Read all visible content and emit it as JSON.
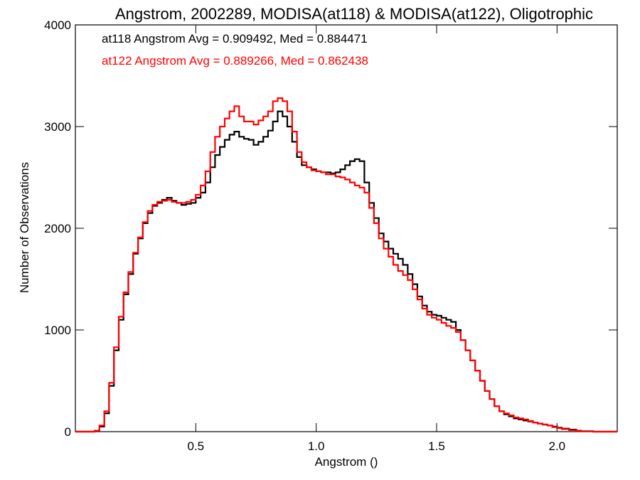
{
  "chart_data": {
    "type": "line",
    "title": "Angstrom, 2002289, MODISA(at118) & MODISA(at122), Oligotrophic",
    "xlabel": "Angstrom ()",
    "ylabel": "Number of Observations",
    "xlim": [
      0.0,
      2.25
    ],
    "ylim": [
      0,
      4000
    ],
    "xticks": [
      0.5,
      1.0,
      1.5,
      2.0
    ],
    "xtick_labels": [
      "0.5",
      "1.0",
      "1.5",
      "2.0"
    ],
    "yticks": [
      0,
      1000,
      2000,
      3000,
      4000
    ],
    "ytick_labels": [
      "0",
      "1000",
      "2000",
      "3000",
      "4000"
    ],
    "grid": false,
    "legend_placement": "top-left",
    "series": [
      {
        "name": "at118",
        "color": "#000000",
        "legend_text": "at118 Angstrom Avg = 0.909492, Med = 0.884471",
        "x": [
          0.0,
          0.05,
          0.08,
          0.1,
          0.12,
          0.14,
          0.16,
          0.18,
          0.2,
          0.22,
          0.24,
          0.26,
          0.28,
          0.3,
          0.32,
          0.34,
          0.36,
          0.38,
          0.4,
          0.42,
          0.44,
          0.46,
          0.48,
          0.5,
          0.52,
          0.54,
          0.56,
          0.58,
          0.6,
          0.62,
          0.64,
          0.66,
          0.68,
          0.7,
          0.72,
          0.74,
          0.76,
          0.78,
          0.8,
          0.82,
          0.84,
          0.86,
          0.88,
          0.9,
          0.92,
          0.94,
          0.96,
          0.98,
          1.0,
          1.02,
          1.04,
          1.06,
          1.08,
          1.1,
          1.12,
          1.14,
          1.16,
          1.18,
          1.2,
          1.22,
          1.24,
          1.26,
          1.28,
          1.3,
          1.32,
          1.34,
          1.36,
          1.38,
          1.4,
          1.42,
          1.44,
          1.46,
          1.48,
          1.5,
          1.52,
          1.54,
          1.56,
          1.58,
          1.6,
          1.62,
          1.64,
          1.66,
          1.68,
          1.7,
          1.72,
          1.74,
          1.76,
          1.78,
          1.8,
          1.82,
          1.84,
          1.86,
          1.88,
          1.9,
          1.92,
          1.94,
          1.96,
          1.98,
          2.0,
          2.02,
          2.05,
          2.08,
          2.1,
          2.15,
          2.2,
          2.25
        ],
        "y": [
          0,
          0,
          10,
          50,
          180,
          450,
          800,
          1100,
          1350,
          1550,
          1750,
          1900,
          2050,
          2150,
          2220,
          2250,
          2280,
          2300,
          2270,
          2250,
          2230,
          2240,
          2250,
          2300,
          2350,
          2450,
          2600,
          2720,
          2800,
          2870,
          2920,
          2950,
          2900,
          2880,
          2870,
          2820,
          2850,
          2900,
          2960,
          3050,
          3150,
          3100,
          3000,
          2850,
          2700,
          2620,
          2600,
          2580,
          2560,
          2550,
          2550,
          2540,
          2550,
          2580,
          2620,
          2660,
          2680,
          2660,
          2450,
          2250,
          2100,
          1950,
          1870,
          1800,
          1750,
          1700,
          1640,
          1550,
          1450,
          1330,
          1240,
          1180,
          1150,
          1140,
          1120,
          1100,
          1080,
          1000,
          900,
          800,
          700,
          600,
          500,
          400,
          320,
          250,
          200,
          170,
          150,
          130,
          120,
          110,
          100,
          90,
          80,
          70,
          60,
          50,
          40,
          30,
          20,
          10,
          5,
          0,
          0,
          0
        ]
      },
      {
        "name": "at122",
        "color": "#ff0000",
        "legend_text": "at122 Angstrom Avg = 0.889266, Med = 0.862438",
        "x": [
          0.0,
          0.05,
          0.08,
          0.1,
          0.12,
          0.14,
          0.16,
          0.18,
          0.2,
          0.22,
          0.24,
          0.26,
          0.28,
          0.3,
          0.32,
          0.34,
          0.36,
          0.38,
          0.4,
          0.42,
          0.44,
          0.46,
          0.48,
          0.5,
          0.52,
          0.54,
          0.56,
          0.58,
          0.6,
          0.62,
          0.64,
          0.66,
          0.68,
          0.7,
          0.72,
          0.74,
          0.76,
          0.78,
          0.8,
          0.82,
          0.84,
          0.86,
          0.88,
          0.9,
          0.92,
          0.94,
          0.96,
          0.98,
          1.0,
          1.02,
          1.04,
          1.06,
          1.08,
          1.1,
          1.12,
          1.14,
          1.16,
          1.18,
          1.2,
          1.22,
          1.24,
          1.26,
          1.28,
          1.3,
          1.32,
          1.34,
          1.36,
          1.38,
          1.4,
          1.42,
          1.44,
          1.46,
          1.48,
          1.5,
          1.52,
          1.54,
          1.56,
          1.58,
          1.6,
          1.62,
          1.64,
          1.66,
          1.68,
          1.7,
          1.72,
          1.74,
          1.76,
          1.78,
          1.8,
          1.82,
          1.84,
          1.86,
          1.88,
          1.9,
          1.92,
          1.94,
          1.96,
          1.98,
          2.0,
          2.02,
          2.05,
          2.08,
          2.1,
          2.15,
          2.2,
          2.25
        ],
        "y": [
          0,
          0,
          10,
          60,
          200,
          480,
          830,
          1130,
          1370,
          1570,
          1760,
          1910,
          2060,
          2170,
          2230,
          2260,
          2270,
          2280,
          2260,
          2250,
          2250,
          2260,
          2280,
          2330,
          2420,
          2560,
          2750,
          2900,
          3000,
          3080,
          3150,
          3200,
          3100,
          3050,
          3050,
          3020,
          3060,
          3100,
          3150,
          3250,
          3280,
          3250,
          3150,
          2950,
          2750,
          2650,
          2600,
          2570,
          2560,
          2550,
          2530,
          2530,
          2510,
          2500,
          2480,
          2450,
          2420,
          2400,
          2350,
          2200,
          2050,
          1900,
          1800,
          1720,
          1640,
          1580,
          1540,
          1490,
          1400,
          1300,
          1210,
          1150,
          1120,
          1100,
          1070,
          1040,
          1020,
          980,
          900,
          800,
          700,
          600,
          500,
          400,
          320,
          250,
          200,
          180,
          160,
          140,
          130,
          120,
          105,
          90,
          80,
          70,
          60,
          45,
          35,
          25,
          15,
          8,
          3,
          0,
          0,
          0
        ]
      }
    ]
  }
}
